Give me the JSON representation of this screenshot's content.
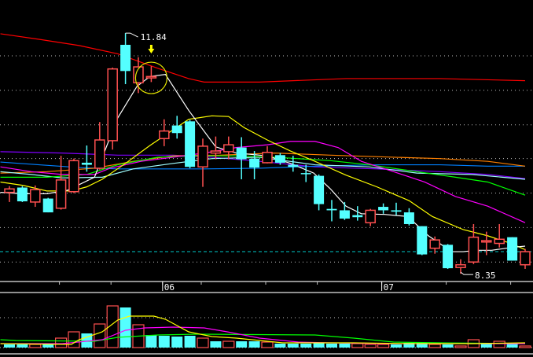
{
  "chart_data": {
    "type": "candlestick",
    "ylim": [
      8.26,
      12.32
    ],
    "grid": true,
    "grid_prices": [
      11.51,
      11.01,
      10.51,
      10.02,
      9.52,
      9.02,
      8.52
    ],
    "current_price_line": 8.67,
    "x_tick_labels": [
      {
        "index": 12,
        "label": "06"
      },
      {
        "index": 29,
        "label": "07"
      }
    ],
    "x_minor_ticks": [
      4,
      8,
      12,
      15,
      20,
      24,
      29,
      34,
      39
    ],
    "annotations": {
      "high_label": "11.84",
      "high_index": 9,
      "high_price": 11.84,
      "low_label": "8.35",
      "low_index": 35,
      "low_price": 8.35,
      "marker_arrow_index": 11,
      "marker_circle_index": 11,
      "marker_circle_price": 11.19
    },
    "colors": {
      "up": "#ff5050",
      "down": "#54ffff",
      "grid": "#c0c0c0",
      "axis": "#c0c0c0"
    },
    "candles": [
      [
        9.53,
        9.62,
        9.39,
        9.58
      ],
      [
        9.6,
        9.62,
        9.39,
        9.4
      ],
      [
        9.39,
        9.63,
        9.32,
        9.57
      ],
      [
        9.44,
        9.45,
        9.24,
        9.24
      ],
      [
        9.3,
        10.06,
        9.28,
        9.71
      ],
      [
        9.54,
        10.02,
        9.52,
        9.99
      ],
      [
        9.96,
        10.21,
        9.83,
        9.93
      ],
      [
        9.88,
        10.55,
        9.86,
        10.29
      ],
      [
        10.28,
        11.34,
        10.15,
        11.32
      ],
      [
        11.67,
        11.84,
        11.1,
        11.29
      ],
      [
        11.12,
        11.49,
        10.97,
        11.35
      ],
      [
        11.19,
        11.36,
        11.13,
        11.21
      ],
      [
        10.31,
        10.59,
        10.2,
        10.42
      ],
      [
        10.5,
        10.64,
        10.31,
        10.39
      ],
      [
        10.56,
        10.58,
        9.88,
        9.9
      ],
      [
        9.9,
        10.31,
        9.61,
        10.2
      ],
      [
        10.1,
        10.34,
        10.01,
        10.13
      ],
      [
        10.12,
        10.34,
        10.01,
        10.22
      ],
      [
        10.18,
        10.33,
        9.72,
        10.01
      ],
      [
        10.02,
        10.13,
        9.72,
        9.89
      ],
      [
        9.96,
        10.2,
        9.95,
        10.11
      ],
      [
        10.07,
        10.1,
        9.93,
        9.96
      ],
      [
        9.93,
        10.06,
        9.83,
        9.9
      ],
      [
        9.81,
        9.93,
        9.68,
        9.8
      ],
      [
        9.77,
        9.79,
        9.27,
        9.36
      ],
      [
        9.29,
        9.42,
        9.11,
        9.27
      ],
      [
        9.27,
        9.39,
        9.13,
        9.15
      ],
      [
        9.2,
        9.33,
        9.12,
        9.17
      ],
      [
        9.09,
        9.29,
        9.04,
        9.27
      ],
      [
        9.32,
        9.37,
        9.22,
        9.27
      ],
      [
        9.27,
        9.38,
        9.2,
        9.25
      ],
      [
        9.24,
        9.3,
        9.05,
        9.07
      ],
      [
        9.04,
        9.04,
        8.62,
        8.63
      ],
      [
        8.72,
        8.89,
        8.64,
        8.84
      ],
      [
        8.77,
        8.78,
        8.42,
        8.43
      ],
      [
        8.44,
        8.56,
        8.35,
        8.48
      ],
      [
        8.52,
        9.07,
        8.49,
        8.88
      ],
      [
        8.81,
        8.96,
        8.62,
        8.83
      ],
      [
        8.79,
        9.07,
        8.73,
        8.85
      ],
      [
        8.88,
        8.88,
        8.54,
        8.54
      ],
      [
        8.48,
        8.71,
        8.42,
        8.67
      ]
    ],
    "moving_averages": [
      {
        "color": "#ff0000",
        "points": [
          [
            -0.7,
            11.83
          ],
          [
            2.3,
            11.75
          ],
          [
            5.4,
            11.66
          ],
          [
            8.4,
            11.54
          ],
          [
            11.5,
            11.33
          ],
          [
            13.9,
            11.18
          ],
          [
            15.1,
            11.13
          ],
          [
            19.4,
            11.13
          ],
          [
            26.1,
            11.18
          ],
          [
            33.4,
            11.18
          ],
          [
            40,
            11.15
          ]
        ]
      },
      {
        "color": "#8000ff",
        "points": [
          [
            -0.7,
            10.12
          ],
          [
            4.1,
            10.1
          ],
          [
            8.4,
            10.07
          ],
          [
            12.7,
            10.07
          ],
          [
            15.7,
            10.04
          ],
          [
            19.4,
            9.98
          ],
          [
            23.7,
            9.9
          ],
          [
            28.5,
            9.87
          ],
          [
            33.4,
            9.83
          ],
          [
            37.1,
            9.79
          ],
          [
            40,
            9.73
          ]
        ]
      },
      {
        "color": "#0080ff",
        "points": [
          [
            -0.7,
            9.97
          ],
          [
            2.3,
            9.93
          ],
          [
            5.4,
            9.89
          ],
          [
            8.4,
            9.87
          ],
          [
            11.5,
            9.87
          ],
          [
            15.1,
            9.87
          ],
          [
            19.4,
            9.88
          ],
          [
            23.7,
            9.91
          ],
          [
            28.5,
            9.93
          ],
          [
            33.4,
            9.93
          ],
          [
            37.1,
            9.91
          ],
          [
            40,
            9.91
          ]
        ]
      },
      {
        "color": "#ff8000",
        "points": [
          [
            -0.7,
            9.81
          ],
          [
            2.9,
            9.83
          ],
          [
            6.6,
            9.88
          ],
          [
            9.6,
            9.98
          ],
          [
            12.7,
            10.06
          ],
          [
            16.3,
            10.07
          ],
          [
            20.6,
            10.1
          ],
          [
            24.9,
            10.07
          ],
          [
            29.8,
            10.04
          ],
          [
            33.4,
            10.02
          ],
          [
            37.1,
            9.98
          ],
          [
            40,
            9.91
          ]
        ]
      },
      {
        "color": "#a0ffff",
        "points": [
          [
            -0.7,
            9.83
          ],
          [
            1.7,
            9.79
          ],
          [
            4.1,
            9.74
          ],
          [
            7.2,
            9.75
          ],
          [
            9.6,
            9.87
          ],
          [
            12.7,
            9.95
          ],
          [
            15.7,
            10.02
          ],
          [
            19.4,
            10.04
          ],
          [
            23.7,
            9.93
          ],
          [
            27.9,
            9.9
          ],
          [
            31.6,
            9.81
          ],
          [
            35.9,
            9.79
          ],
          [
            40,
            9.72
          ]
        ]
      },
      {
        "color": "#00ff00",
        "points": [
          [
            -0.7,
            9.75
          ],
          [
            2.9,
            9.75
          ],
          [
            6.0,
            9.79
          ],
          [
            8.4,
            9.93
          ],
          [
            11.5,
            10.04
          ],
          [
            14.5,
            10.06
          ],
          [
            17.6,
            10.06
          ],
          [
            20.6,
            10.04
          ],
          [
            24.9,
            9.99
          ],
          [
            27.9,
            9.93
          ],
          [
            31.6,
            9.83
          ],
          [
            34.6,
            9.75
          ],
          [
            37.1,
            9.68
          ],
          [
            40,
            9.49
          ]
        ]
      },
      {
        "color": "#ff00ff",
        "points": [
          [
            -0.7,
            9.9
          ],
          [
            1.7,
            9.83
          ],
          [
            4.1,
            9.79
          ],
          [
            6.6,
            9.79
          ],
          [
            7.8,
            9.88
          ],
          [
            10.2,
            9.98
          ],
          [
            12.7,
            10.04
          ],
          [
            15.1,
            10.1
          ],
          [
            17.6,
            10.18
          ],
          [
            20.0,
            10.22
          ],
          [
            21.8,
            10.27
          ],
          [
            23.7,
            10.27
          ],
          [
            25.5,
            10.18
          ],
          [
            27.3,
            9.98
          ],
          [
            29.8,
            9.83
          ],
          [
            32.2,
            9.68
          ],
          [
            34.6,
            9.47
          ],
          [
            37.1,
            9.33
          ],
          [
            40,
            9.09
          ]
        ]
      },
      {
        "color": "#ffff00",
        "points": [
          [
            -0.7,
            9.68
          ],
          [
            1.1,
            9.63
          ],
          [
            2.9,
            9.55
          ],
          [
            4.8,
            9.55
          ],
          [
            6.0,
            9.61
          ],
          [
            7.2,
            9.72
          ],
          [
            9.0,
            9.95
          ],
          [
            10.9,
            10.21
          ],
          [
            12.4,
            10.4
          ],
          [
            13.9,
            10.59
          ],
          [
            15.7,
            10.64
          ],
          [
            17.0,
            10.63
          ],
          [
            18.2,
            10.47
          ],
          [
            20.0,
            10.29
          ],
          [
            21.8,
            10.13
          ],
          [
            23.7,
            9.98
          ],
          [
            26.1,
            9.78
          ],
          [
            28.5,
            9.61
          ],
          [
            31.0,
            9.41
          ],
          [
            32.8,
            9.18
          ],
          [
            35.2,
            8.99
          ],
          [
            37.1,
            8.9
          ],
          [
            38.9,
            8.79
          ],
          [
            40,
            8.7
          ]
        ]
      },
      {
        "color": "#ffffff",
        "points": [
          [
            -0.7,
            9.53
          ],
          [
            1.1,
            9.51
          ],
          [
            2.9,
            9.51
          ],
          [
            4.5,
            9.56
          ],
          [
            6.6,
            9.75
          ],
          [
            8.4,
            10.61
          ],
          [
            9.9,
            11.07
          ],
          [
            10.9,
            11.21
          ],
          [
            12.1,
            11.24
          ],
          [
            13.9,
            10.72
          ],
          [
            16.0,
            10.19
          ],
          [
            17.6,
            10.1
          ],
          [
            20.0,
            10.06
          ],
          [
            21.8,
            9.95
          ],
          [
            23.6,
            9.81
          ],
          [
            24.9,
            9.58
          ],
          [
            26.1,
            9.33
          ],
          [
            27.3,
            9.22
          ],
          [
            29.1,
            9.21
          ],
          [
            30.9,
            9.18
          ],
          [
            32.5,
            8.9
          ],
          [
            34.3,
            8.67
          ],
          [
            35.2,
            8.67
          ],
          [
            36.2,
            8.69
          ],
          [
            37.4,
            8.69
          ],
          [
            38.9,
            8.73
          ],
          [
            40,
            8.75
          ]
        ]
      }
    ],
    "volume": {
      "ylim": [
        0,
        69
      ],
      "grid_level": 38,
      "values": [
        4,
        4,
        4,
        4,
        12,
        20,
        18,
        30,
        53,
        51,
        29,
        16,
        15,
        14,
        15,
        12,
        8,
        8,
        8,
        8,
        7,
        5,
        5,
        5,
        6,
        5,
        5,
        5,
        4,
        4,
        4,
        6,
        6,
        4,
        4,
        2,
        10,
        6,
        8,
        5,
        2
      ],
      "direction": [
        "d",
        "d",
        "u",
        "d",
        "u",
        "u",
        "d",
        "u",
        "u",
        "d",
        "u",
        "d",
        "d",
        "d",
        "d",
        "u",
        "d",
        "u",
        "d",
        "d",
        "u",
        "d",
        "d",
        "d",
        "d",
        "d",
        "d",
        "u",
        "u",
        "u",
        "d",
        "d",
        "d",
        "u",
        "d",
        "u",
        "u",
        "d",
        "u",
        "d",
        "u"
      ],
      "moving_averages": [
        {
          "color": "#00ff00",
          "points": [
            [
              -0.7,
              10
            ],
            [
              0.5,
              9
            ],
            [
              6.6,
              8
            ],
            [
              8.4,
              13
            ],
            [
              11.5,
              16
            ],
            [
              14.5,
              17
            ],
            [
              23.7,
              16
            ],
            [
              26.7,
              12
            ],
            [
              29.8,
              7
            ],
            [
              33.4,
              6
            ],
            [
              40,
              5
            ]
          ]
        },
        {
          "color": "#ff00ff",
          "points": [
            [
              -0.7,
              5
            ],
            [
              4.1,
              5
            ],
            [
              7.2,
              10
            ],
            [
              9.0,
              22
            ],
            [
              10.5,
              25
            ],
            [
              12.7,
              26
            ],
            [
              15.1,
              25
            ],
            [
              16.9,
              20
            ],
            [
              19.4,
              12
            ],
            [
              22.4,
              7
            ],
            [
              24.9,
              6
            ],
            [
              29.8,
              5
            ],
            [
              35.9,
              5
            ],
            [
              40,
              5
            ]
          ]
        },
        {
          "color": "#ffff00",
          "points": [
            [
              -0.7,
              5
            ],
            [
              4.8,
              4
            ],
            [
              5.4,
              10
            ],
            [
              7.2,
              20
            ],
            [
              8.4,
              35
            ],
            [
              9.3,
              40
            ],
            [
              11.2,
              40
            ],
            [
              12.1,
              36
            ],
            [
              13.9,
              20
            ],
            [
              15.7,
              14
            ],
            [
              17.6,
              12
            ],
            [
              19.4,
              9
            ],
            [
              21.2,
              6
            ],
            [
              23.7,
              6
            ],
            [
              26.7,
              6
            ],
            [
              31.0,
              5
            ],
            [
              35.9,
              5
            ],
            [
              40,
              6
            ]
          ]
        }
      ]
    }
  }
}
